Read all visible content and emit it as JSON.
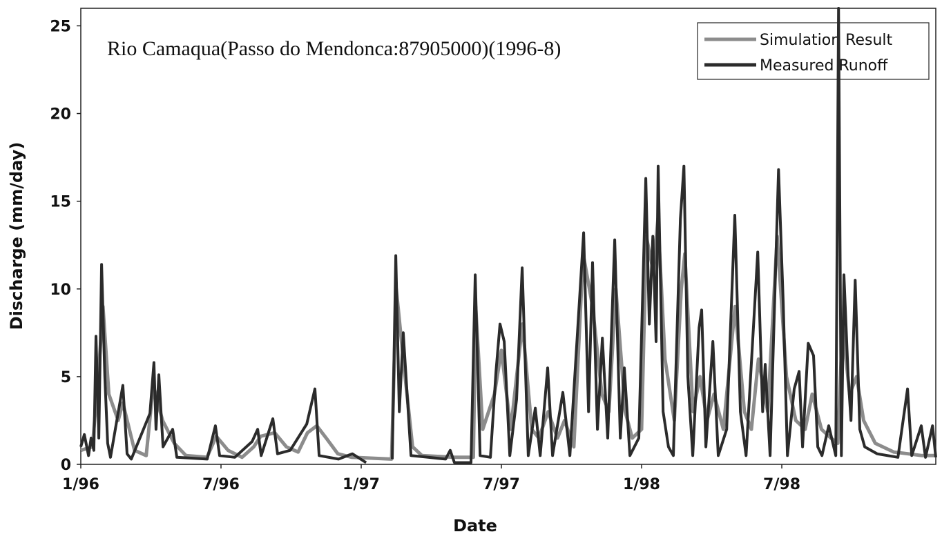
{
  "chart_data": {
    "type": "line",
    "title": "Rio Camaqua(Passo do Mendonca:87905000)(1996-8)",
    "x_label": "Date",
    "y_label": "Discharge (mm/day)",
    "xlim": [
      0,
      36.59
    ],
    "xticks": [
      {
        "value": 0,
        "label": "1/96"
      },
      {
        "value": 6,
        "label": "7/96"
      },
      {
        "value": 12,
        "label": "1/97"
      },
      {
        "value": 18,
        "label": "7/97"
      },
      {
        "value": 24,
        "label": "1/98"
      },
      {
        "value": 30,
        "label": "7/98"
      }
    ],
    "ylim": [
      0,
      26
    ],
    "yticks": [
      0,
      5,
      10,
      15,
      20,
      25
    ],
    "legend": "upper right",
    "series": [
      {
        "name": "Simulation Result",
        "color": "#8c8c8c",
        "x": [
          0,
          0.5,
          0.8,
          0.95,
          1.2,
          1.6,
          1.8,
          2.3,
          2.8,
          3.1,
          3.5,
          4.0,
          4.5,
          5.4,
          5.8,
          6.3,
          6.9,
          7.4,
          7.7,
          8.3,
          8.8,
          9.3,
          9.7,
          10.1,
          10.5,
          11.0,
          11.6,
          13.3,
          13.5,
          13.8,
          14.2,
          14.6,
          16.0,
          16.8,
          16.9,
          17.2,
          17.7,
          18.0,
          18.4,
          18.9,
          19.3,
          19.6,
          20.0,
          20.4,
          20.7,
          21.1,
          21.5,
          21.9,
          22.3,
          22.6,
          22.9,
          23.3,
          23.6,
          24.0,
          24.2,
          24.5,
          24.7,
          25.0,
          25.4,
          25.7,
          25.85,
          26.2,
          26.5,
          26.8,
          27.1,
          27.5,
          28.0,
          28.4,
          28.7,
          29.0,
          29.4,
          29.8,
          30.2,
          30.6,
          31.0,
          31.3,
          31.7,
          32.1,
          32.4,
          32.6,
          32.9,
          33.2,
          33.5,
          34.0,
          34.8,
          35.4,
          36.0,
          36.59
        ],
        "values": [
          0.8,
          1.0,
          6,
          9,
          4,
          2.5,
          3.5,
          0.8,
          0.5,
          4.5,
          2.5,
          1.2,
          0.5,
          0.4,
          1.6,
          0.8,
          0.4,
          1.0,
          1.6,
          1.8,
          1.0,
          0.7,
          1.8,
          2.2,
          1.5,
          0.6,
          0.4,
          0.3,
          10,
          6,
          1,
          0.5,
          0.4,
          0.4,
          9,
          2,
          4,
          6.5,
          2,
          8,
          2,
          1.5,
          3,
          1.5,
          2.5,
          1,
          12,
          9,
          4,
          3,
          10,
          3,
          1.5,
          2,
          13,
          11,
          14,
          6,
          2.5,
          10,
          12,
          3,
          5,
          2.5,
          4,
          2,
          9,
          3,
          2,
          6,
          3,
          13,
          5,
          2.5,
          2,
          4,
          2,
          1.5,
          1.2,
          8,
          4,
          5,
          2.5,
          1.2,
          0.7,
          0.6,
          0.5,
          0.5
        ]
      },
      {
        "name": "Measured Runoff",
        "color": "#2b2b2b",
        "x": [
          0,
          0.15,
          0.33,
          0.44,
          0.56,
          0.65,
          0.77,
          0.89,
          1.03,
          1.15,
          1.27,
          1.8,
          1.98,
          2.16,
          2.96,
          3.13,
          3.22,
          3.34,
          3.52,
          3.93,
          4.11,
          5.41,
          5.76,
          5.94,
          6.59,
          7.33,
          7.57,
          7.72,
          8.22,
          8.42,
          8.96,
          9.67,
          10.02,
          10.2,
          11.03,
          11.62,
          12.21,
          12.8,
          13.33,
          13.48,
          13.63,
          13.8,
          14.13,
          14.87,
          15.61,
          15.81,
          15.99,
          16.7,
          16.88,
          17.09,
          17.53,
          17.77,
          17.94,
          18.12,
          18.36,
          18.65,
          18.89,
          19.15,
          19.45,
          19.66,
          19.98,
          20.19,
          20.63,
          20.93,
          21.52,
          21.73,
          21.9,
          22.11,
          22.32,
          22.55,
          22.85,
          23.09,
          23.26,
          23.5,
          23.88,
          24.18,
          24.33,
          24.48,
          24.62,
          24.71,
          24.92,
          25.15,
          25.36,
          25.66,
          25.81,
          25.98,
          26.19,
          26.46,
          26.57,
          26.75,
          27.05,
          27.28,
          27.64,
          27.99,
          28.23,
          28.47,
          28.97,
          29.18,
          29.29,
          29.5,
          29.86,
          30.06,
          30.24,
          30.53,
          30.74,
          30.89,
          31.13,
          31.36,
          31.54,
          31.72,
          32.01,
          32.31,
          32.43,
          32.55,
          32.66,
          32.84,
          32.96,
          33.14,
          33.34,
          33.55,
          34.08,
          34.97,
          35.38,
          35.56,
          35.97,
          36.15,
          36.45,
          36.59
        ],
        "values": [
          1.0,
          1.7,
          0.5,
          1.5,
          0.8,
          7.3,
          1.5,
          11.4,
          5,
          1.2,
          0.4,
          4.5,
          0.6,
          0.3,
          2.9,
          5.8,
          2,
          5.1,
          1,
          2.0,
          0.4,
          0.3,
          2.2,
          0.5,
          0.4,
          1.3,
          2.0,
          0.5,
          2.6,
          0.6,
          0.8,
          2.3,
          4.3,
          0.5,
          0.3,
          0.6,
          0.1,
          null,
          0.3,
          11.9,
          3,
          7.5,
          0.5,
          0.4,
          0.3,
          0.8,
          0.1,
          0.1,
          10.8,
          0.5,
          0.4,
          5.3,
          8,
          7,
          0.5,
          3.7,
          11.2,
          0.5,
          3.2,
          0.5,
          5.5,
          0.5,
          4.1,
          0.5,
          13.2,
          3,
          11.5,
          2,
          7.2,
          1.5,
          12.8,
          1.5,
          5.5,
          0.5,
          1.5,
          16.3,
          8,
          13,
          7,
          17,
          3,
          1,
          0.5,
          14,
          17,
          5,
          0.5,
          7.8,
          8.8,
          1,
          7,
          0.5,
          2,
          14.2,
          3,
          0.5,
          12.1,
          3,
          5.7,
          0.5,
          16.8,
          9.2,
          0.5,
          4.3,
          5.3,
          1,
          6.9,
          6.2,
          1,
          0.5,
          2.2,
          0.5,
          26,
          0.5,
          10.8,
          5,
          2.5,
          10.5,
          2,
          1,
          0.6,
          0.4,
          4.3,
          0.5,
          2.2,
          0.4,
          2.2,
          0.4
        ]
      }
    ]
  }
}
